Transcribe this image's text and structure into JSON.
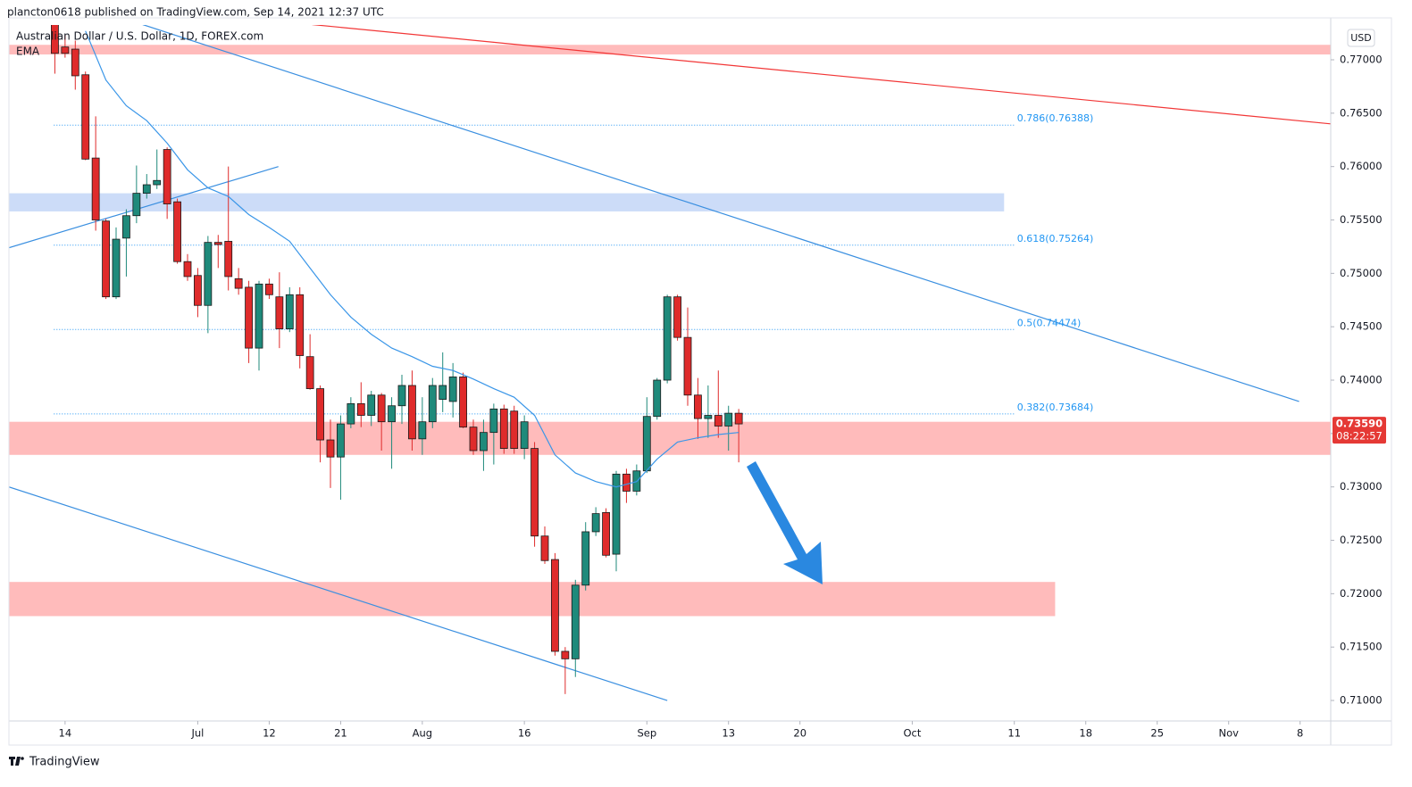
{
  "header": {
    "publisher": "plancton0618 published on TradingView.com, Sep 14, 2021 12:37 UTC",
    "logo": "TradingView"
  },
  "chart_data": {
    "type": "candlestick",
    "title": "Australian Dollar / U.S. Dollar, 1D, FOREX.com",
    "currency": "USD",
    "x": [
      -1,
      0,
      1,
      2,
      3,
      4,
      5,
      6,
      7,
      8,
      9,
      10,
      11,
      12,
      13,
      14,
      15,
      16,
      17,
      18,
      19,
      20,
      21,
      22,
      23,
      24,
      25,
      26,
      27,
      28,
      29,
      30,
      31,
      32,
      33,
      34,
      35,
      36,
      37,
      38,
      39,
      40,
      41,
      42,
      43,
      44,
      45,
      46,
      47,
      48,
      49,
      50,
      51,
      52,
      53,
      54,
      55,
      56,
      57,
      58,
      59,
      60,
      61,
      62,
      63,
      64,
      65,
      66
    ],
    "open": [
      0.7733,
      0.7712,
      0.771,
      0.7686,
      0.7608,
      0.7549,
      0.7478,
      0.7533,
      0.7554,
      0.7575,
      0.7583,
      0.7616,
      0.7567,
      0.7511,
      0.7498,
      0.747,
      0.7529,
      0.753,
      0.7495,
      0.7487,
      0.743,
      0.749,
      0.7478,
      0.7448,
      0.748,
      0.7422,
      0.7392,
      0.7344,
      0.7328,
      0.7359,
      0.7378,
      0.7367,
      0.7386,
      0.7361,
      0.7376,
      0.7395,
      0.7345,
      0.7361,
      0.7382,
      0.738,
      0.7403,
      0.7356,
      0.7334,
      0.7351,
      0.7373,
      0.7371,
      0.7336,
      0.7336,
      0.7254,
      0.7232,
      0.7146,
      0.7139,
      0.7208,
      0.7258,
      0.7276,
      0.7237,
      0.7312,
      0.7296,
      0.7315,
      0.7366,
      0.74,
      0.7478,
      0.744,
      0.7386,
      0.7364,
      0.7367,
      0.7357,
      0.7369
    ],
    "high": [
      0.7733,
      0.7723,
      0.7718,
      0.7689,
      0.7647,
      0.7551,
      0.7543,
      0.756,
      0.7601,
      0.7593,
      0.7616,
      0.7618,
      0.757,
      0.7518,
      0.7505,
      0.7535,
      0.7536,
      0.76,
      0.7505,
      0.7493,
      0.7493,
      0.7495,
      0.7501,
      0.7487,
      0.7487,
      0.7443,
      0.7395,
      0.7363,
      0.7367,
      0.7384,
      0.7398,
      0.739,
      0.7388,
      0.7384,
      0.7405,
      0.7409,
      0.7384,
      0.7402,
      0.7426,
      0.7416,
      0.7407,
      0.7363,
      0.7363,
      0.7378,
      0.7377,
      0.7376,
      0.7367,
      0.7342,
      0.7263,
      0.7238,
      0.715,
      0.7213,
      0.7267,
      0.7281,
      0.728,
      0.7315,
      0.7317,
      0.7321,
      0.7384,
      0.7402,
      0.748,
      0.748,
      0.7468,
      0.7402,
      0.7395,
      0.7409,
      0.7376,
      0.7373
    ],
    "low": [
      0.7687,
      0.7702,
      0.7672,
      0.7606,
      0.754,
      0.7476,
      0.7476,
      0.7497,
      0.7547,
      0.757,
      0.7579,
      0.7551,
      0.7509,
      0.7493,
      0.7459,
      0.7444,
      0.7505,
      0.7484,
      0.748,
      0.7416,
      0.7409,
      0.7476,
      0.743,
      0.7445,
      0.7411,
      0.7391,
      0.7323,
      0.7299,
      0.7288,
      0.7355,
      0.7356,
      0.7357,
      0.7334,
      0.7317,
      0.7359,
      0.7334,
      0.733,
      0.7355,
      0.737,
      0.7365,
      0.7355,
      0.733,
      0.7315,
      0.7321,
      0.7331,
      0.7331,
      0.7326,
      0.7244,
      0.7228,
      0.7142,
      0.7106,
      0.7122,
      0.7203,
      0.7254,
      0.7234,
      0.7221,
      0.7285,
      0.7292,
      0.7313,
      0.7363,
      0.7397,
      0.7437,
      0.7376,
      0.7345,
      0.7346,
      0.7346,
      0.7334,
      0.7323
    ],
    "close": [
      0.7706,
      0.7706,
      0.7685,
      0.7607,
      0.755,
      0.7478,
      0.7532,
      0.7554,
      0.7575,
      0.7583,
      0.7587,
      0.7565,
      0.7511,
      0.7497,
      0.747,
      0.7529,
      0.7527,
      0.7497,
      0.7486,
      0.743,
      0.749,
      0.748,
      0.7448,
      0.748,
      0.7423,
      0.7392,
      0.7344,
      0.7328,
      0.7359,
      0.7378,
      0.7367,
      0.7386,
      0.7361,
      0.7376,
      0.7395,
      0.7345,
      0.7361,
      0.7395,
      0.7395,
      0.7403,
      0.7356,
      0.7334,
      0.7351,
      0.7373,
      0.7336,
      0.7336,
      0.7361,
      0.7254,
      0.7231,
      0.7146,
      0.7139,
      0.7208,
      0.7258,
      0.7275,
      0.7236,
      0.7312,
      0.7296,
      0.7315,
      0.7366,
      0.74,
      0.7478,
      0.744,
      0.7386,
      0.7364,
      0.7367,
      0.7357,
      0.7369,
      0.7359
    ],
    "up_color": "#1f8a7b",
    "down_color": "#df2b2b",
    "indicator": {
      "name": "EMA",
      "color": "#3a96e8",
      "x": [
        2,
        4,
        6,
        8,
        10,
        12,
        14,
        16,
        18,
        20,
        22,
        24,
        26,
        28,
        30,
        32,
        34,
        36,
        38,
        40,
        42,
        44,
        46,
        48,
        50,
        52,
        54,
        56,
        58,
        60,
        62,
        64,
        66
      ],
      "values": [
        0.7727,
        0.7681,
        0.7657,
        0.7643,
        0.7622,
        0.7597,
        0.758,
        0.7572,
        0.7555,
        0.7543,
        0.753,
        0.7505,
        0.748,
        0.7459,
        0.7443,
        0.743,
        0.7422,
        0.7413,
        0.7409,
        0.7401,
        0.7392,
        0.7384,
        0.7367,
        0.733,
        0.7313,
        0.7305,
        0.73,
        0.7305,
        0.7326,
        0.7342,
        0.7346,
        0.7349,
        0.7351
      ]
    },
    "xlim": [
      -5.5,
      124
    ],
    "xticks": [
      {
        "value": 0,
        "label": "14"
      },
      {
        "value": 13,
        "label": "Jul"
      },
      {
        "value": 20,
        "label": "12"
      },
      {
        "value": 27,
        "label": "21"
      },
      {
        "value": 35,
        "label": "Aug"
      },
      {
        "value": 45,
        "label": "16"
      },
      {
        "value": 57,
        "label": "Sep"
      },
      {
        "value": 65,
        "label": "13"
      },
      {
        "value": 72,
        "label": "20"
      },
      {
        "value": 83,
        "label": "Oct"
      },
      {
        "value": 93,
        "label": "11"
      },
      {
        "value": 100,
        "label": "18"
      },
      {
        "value": 107,
        "label": "25"
      },
      {
        "value": 114,
        "label": "Nov"
      },
      {
        "value": 121,
        "label": "8"
      }
    ],
    "ylim": [
      0.70808,
      0.77326
    ],
    "yticks": [
      {
        "value": 0.71,
        "label": "0.71000"
      },
      {
        "value": 0.715,
        "label": "0.71500"
      },
      {
        "value": 0.72,
        "label": "0.72000"
      },
      {
        "value": 0.725,
        "label": "0.72500"
      },
      {
        "value": 0.73,
        "label": "0.73000"
      },
      {
        "value": 0.735,
        "label": "0.73500"
      },
      {
        "value": 0.74,
        "label": "0.74000"
      },
      {
        "value": 0.745,
        "label": "0.74500"
      },
      {
        "value": 0.75,
        "label": "0.75000"
      },
      {
        "value": 0.755,
        "label": "0.75500"
      },
      {
        "value": 0.76,
        "label": "0.76000"
      },
      {
        "value": 0.765,
        "label": "0.76500"
      },
      {
        "value": 0.77,
        "label": "0.77000"
      }
    ],
    "last_price": {
      "value": 0.7359,
      "label": "0.73590",
      "countdown": "08:22:57",
      "color": "#e53935"
    },
    "fib_levels": [
      {
        "value": 0.76388,
        "label": "0.786(0.76388)"
      },
      {
        "value": 0.75264,
        "label": "0.618(0.75264)"
      },
      {
        "value": 0.74474,
        "label": "0.5(0.74474)"
      },
      {
        "value": 0.73684,
        "label": "0.382(0.73684)"
      }
    ],
    "fib_range": [
      -1.1,
      93
    ],
    "fib_color": "#2196f3",
    "zones": [
      {
        "x": [
          -5.5,
          124
        ],
        "y": [
          0.7705,
          0.7714
        ],
        "color": "#ffb7b7"
      },
      {
        "x": [
          -5.5,
          92
        ],
        "y": [
          0.7558,
          0.7575
        ],
        "color": "#c9daf8"
      },
      {
        "x": [
          -5.5,
          124
        ],
        "y": [
          0.733,
          0.7361
        ],
        "color": "#ffb7b7"
      },
      {
        "x": [
          -5.5,
          97
        ],
        "y": [
          0.7179,
          0.7211
        ],
        "color": "#ffb7b7"
      }
    ],
    "trendlines": [
      {
        "x": [
          24.2,
          124
        ],
        "y": [
          0.7733,
          0.764
        ],
        "color": "#f23636"
      },
      {
        "x": [
          7.6,
          120.9
        ],
        "y": [
          0.7733,
          0.738
        ],
        "color": "#3a8fe0"
      },
      {
        "x": [
          -5.5,
          20.9
        ],
        "y": [
          0.7524,
          0.76
        ],
        "color": "#3a8fe0"
      },
      {
        "x": [
          -5.5,
          59
        ],
        "y": [
          0.73,
          0.71
        ],
        "color": "#3a8fe0"
      }
    ]
  }
}
